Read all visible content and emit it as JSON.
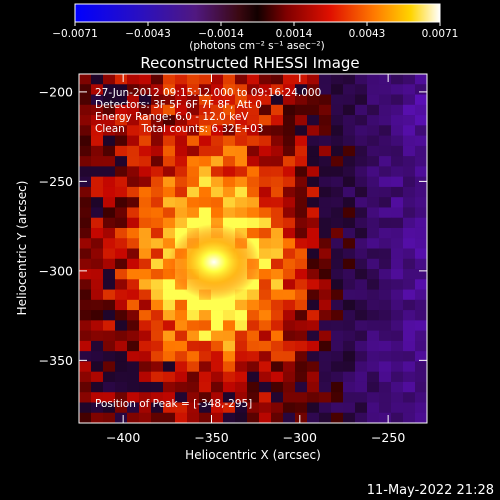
{
  "colorbar": {
    "ticks": [
      "-0.0071",
      "-0.0043",
      "-0.0014",
      "0.0014",
      "0.0043",
      "0.0071"
    ],
    "unit_label": "(photons cm⁻² s⁻¹ asec⁻²)",
    "range": [
      -0.0071,
      0.0071
    ]
  },
  "chart_data": {
    "type": "heatmap",
    "title": "Reconstructed RHESSI Image",
    "xlabel": "Heliocentric X (arcsec)",
    "ylabel": "Heliocentric Y (arcsec)",
    "xlim": [
      -425,
      -228
    ],
    "ylim": [
      -385,
      -190
    ],
    "xticks": [
      -400,
      -350,
      -300,
      -250
    ],
    "yticks": [
      -200,
      -250,
      -300,
      -350
    ],
    "xtick_labels": [
      "−400",
      "−350",
      "−300",
      "−250"
    ],
    "ytick_labels": [
      "−200",
      "−250",
      "−300",
      "−350"
    ],
    "annotations": [
      "27-Jun-2012 09:15:12.000 to 09:16:24.000",
      "Detectors: 3F 5F 6F 7F 8F, Att 0",
      "Energy Range: 6.0 - 12.0 keV",
      "Clean     Total counts: 6.32E+03"
    ],
    "peak_label": "Position of Peak = [-348,-295]",
    "peak_position": [
      -348,
      -295
    ],
    "colormap": "blue-purple-black-red-orange-yellow-white"
  },
  "footer": {
    "timestamp": "11-May-2022 21:28"
  }
}
